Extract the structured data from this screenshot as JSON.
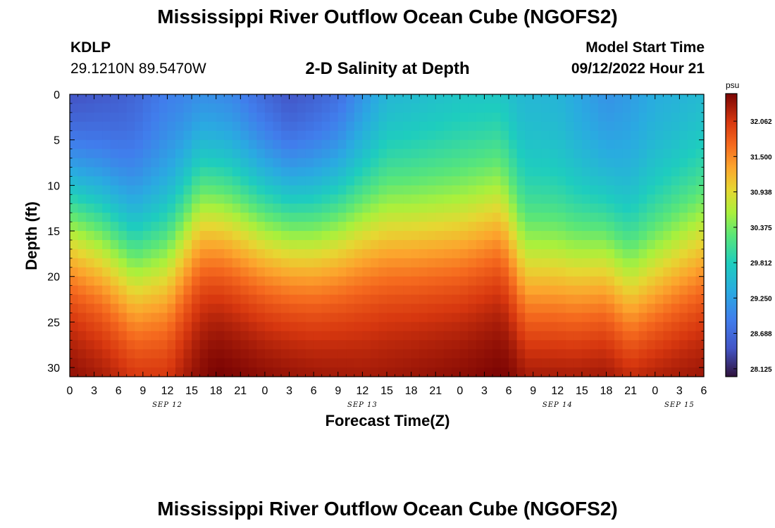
{
  "header": {
    "title": "Mississippi River Outflow Ocean Cube (NGOFS2)",
    "station": "KDLP",
    "coordinates": "29.1210N  89.5470W",
    "subtitle": "2-D Salinity at Depth",
    "model_start_label": "Model Start Time",
    "model_start_value": "09/12/2022 Hour 21"
  },
  "footer": {
    "title_repeat": "Mississippi River Outflow Ocean Cube (NGOFS2)"
  },
  "chart_data": {
    "type": "heatmap",
    "title": "2-D Salinity at Depth",
    "xlabel": "Forecast Time(Z)",
    "ylabel": "Depth (ft)",
    "x_range_hours": [
      0,
      78
    ],
    "y_range_ft": [
      0,
      31
    ],
    "x_tick_values": [
      0,
      3,
      6,
      9,
      12,
      15,
      18,
      21,
      24,
      27,
      30,
      33,
      36,
      39,
      42,
      45,
      48,
      51,
      54,
      57,
      60,
      63,
      66,
      69,
      72,
      75,
      78
    ],
    "x_tick_labels": [
      "0",
      "3",
      "6",
      "9",
      "12",
      "15",
      "18",
      "21",
      "0",
      "3",
      "6",
      "9",
      "12",
      "15",
      "18",
      "21",
      "0",
      "3",
      "6",
      "9",
      "12",
      "15",
      "18",
      "21",
      "0",
      "3",
      "6"
    ],
    "date_labels": [
      {
        "text": "SEP 12",
        "hour": 12
      },
      {
        "text": "SEP 13",
        "hour": 36
      },
      {
        "text": "SEP 14",
        "hour": 60
      },
      {
        "text": "SEP 15",
        "hour": 75
      }
    ],
    "y_tick_values": [
      0,
      5,
      10,
      15,
      20,
      25,
      30
    ],
    "y_tick_labels": [
      "0",
      "5",
      "10",
      "15",
      "20",
      "25",
      "30"
    ],
    "colorbar": {
      "unit": "psu",
      "min": 28.0,
      "max": 32.5,
      "tick_values": [
        32.062,
        31.5,
        30.938,
        30.375,
        29.812,
        29.25,
        28.688,
        28.125
      ],
      "tick_labels": [
        "32.062",
        "31.500",
        "30.938",
        "30.375",
        "29.812",
        "29.250",
        "28.688",
        "28.125"
      ]
    },
    "surface_salinity_psu": [
      {
        "hour": 0,
        "value": 28.1
      },
      {
        "hour": 6,
        "value": 28.4
      },
      {
        "hour": 12,
        "value": 28.8
      },
      {
        "hour": 20,
        "value": 28.7
      },
      {
        "hour": 27,
        "value": 28.2
      },
      {
        "hour": 33,
        "value": 28.5
      },
      {
        "hour": 39,
        "value": 29.3
      },
      {
        "hour": 48,
        "value": 29.5
      },
      {
        "hour": 60,
        "value": 29.4
      },
      {
        "hour": 66,
        "value": 29.0
      },
      {
        "hour": 72,
        "value": 29.3
      },
      {
        "hour": 78,
        "value": 29.4
      }
    ],
    "bottom_salinity_psu": [
      {
        "hour": 0,
        "value": 32.4
      },
      {
        "hour": 12,
        "value": 32.2
      },
      {
        "hour": 18,
        "value": 32.5
      },
      {
        "hour": 36,
        "value": 32.3
      },
      {
        "hour": 54,
        "value": 32.5
      },
      {
        "hour": 66,
        "value": 32.5
      },
      {
        "hour": 78,
        "value": 32.4
      }
    ],
    "halocline_depth_ft": [
      {
        "hour": 0,
        "value": 13.5
      },
      {
        "hour": 4,
        "value": 15.5
      },
      {
        "hour": 8,
        "value": 19.0
      },
      {
        "hour": 12,
        "value": 18.0
      },
      {
        "hour": 16,
        "value": 12.5
      },
      {
        "hour": 19,
        "value": 13.0
      },
      {
        "hour": 24,
        "value": 14.5
      },
      {
        "hour": 30,
        "value": 15.0
      },
      {
        "hour": 36,
        "value": 14.0
      },
      {
        "hour": 42,
        "value": 14.5
      },
      {
        "hour": 48,
        "value": 14.5
      },
      {
        "hour": 53,
        "value": 13.0
      },
      {
        "hour": 55,
        "value": 17.0
      },
      {
        "hour": 56,
        "value": 19.5
      },
      {
        "hour": 62,
        "value": 19.5
      },
      {
        "hour": 66,
        "value": 18.5
      },
      {
        "hour": 67,
        "value": 19.5
      },
      {
        "hour": 69,
        "value": 21.0
      },
      {
        "hour": 72,
        "value": 19.5
      },
      {
        "hour": 78,
        "value": 16.0
      }
    ],
    "transition_thickness_ft": 5.5
  }
}
